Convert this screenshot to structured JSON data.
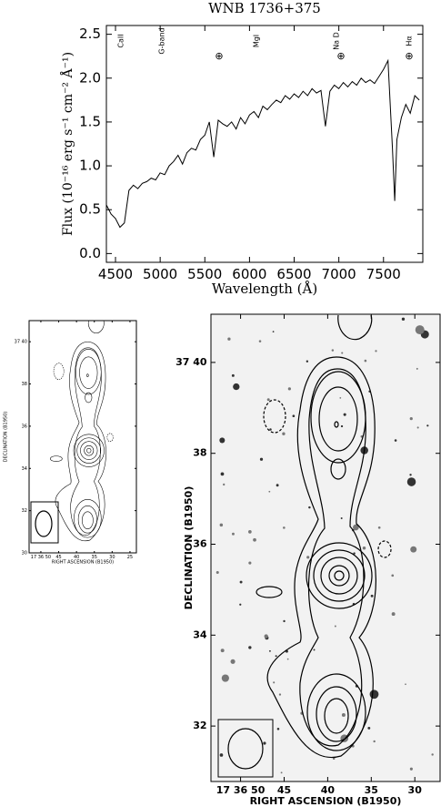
{
  "chart_data": [
    {
      "type": "line",
      "title": "WNB 1736+375",
      "x_label": "Wavelength (Å)",
      "y_label": "Flux (10⁻¹⁶ erg s⁻¹ cm⁻² Å⁻¹)",
      "color": "#000000",
      "x": [
        4400,
        4450,
        4500,
        4550,
        4600,
        4650,
        4700,
        4750,
        4800,
        4850,
        4900,
        4950,
        5000,
        5050,
        5100,
        5150,
        5200,
        5250,
        5300,
        5350,
        5400,
        5450,
        5500,
        5550,
        5600,
        5650,
        5700,
        5750,
        5800,
        5850,
        5900,
        5950,
        6000,
        6050,
        6100,
        6150,
        6200,
        6250,
        6300,
        6350,
        6400,
        6450,
        6500,
        6550,
        6600,
        6650,
        6700,
        6750,
        6800,
        6850,
        6900,
        6950,
        7000,
        7050,
        7100,
        7150,
        7200,
        7250,
        7300,
        7350,
        7400,
        7450,
        7500,
        7550,
        7600,
        7625,
        7650,
        7700,
        7750,
        7800,
        7850,
        7900
      ],
      "values": [
        0.55,
        0.45,
        0.4,
        0.3,
        0.35,
        0.72,
        0.78,
        0.74,
        0.8,
        0.82,
        0.86,
        0.84,
        0.92,
        0.9,
        1.0,
        1.05,
        1.12,
        1.02,
        1.15,
        1.2,
        1.18,
        1.3,
        1.35,
        1.5,
        1.1,
        1.52,
        1.48,
        1.45,
        1.5,
        1.42,
        1.55,
        1.48,
        1.58,
        1.62,
        1.55,
        1.68,
        1.64,
        1.7,
        1.75,
        1.72,
        1.8,
        1.76,
        1.82,
        1.78,
        1.85,
        1.8,
        1.88,
        1.83,
        1.86,
        1.45,
        1.85,
        1.92,
        1.88,
        1.95,
        1.9,
        1.96,
        1.92,
        2.0,
        1.95,
        1.98,
        1.94,
        2.02,
        2.1,
        2.2,
        1.2,
        0.6,
        1.3,
        1.55,
        1.7,
        1.6,
        1.8,
        1.75
      ],
      "xlim": [
        4398,
        7940
      ],
      "ylim": [
        -0.1,
        2.6
      ],
      "xticks": [
        4500,
        5000,
        5500,
        6000,
        6500,
        7000,
        7500
      ],
      "yticks": [
        {
          "value": 0,
          "label": "0.0"
        },
        0.5,
        {
          "value": 1,
          "label": "1.0"
        },
        1.5,
        {
          "value": 2,
          "label": "2.0"
        },
        2.5
      ],
      "annotations": [
        "CaII",
        "G-band",
        "MgI",
        "Na D",
        "Hα"
      ],
      "telluric_markers": [
        "⊕",
        "⊕",
        "⊕"
      ]
    },
    {
      "type": "contour",
      "x_label": "RIGHT ASCENSION (B1950)",
      "y_label": "DECLINATION (B1950)",
      "xlim": [
        53.3,
        23.2
      ],
      "ylim": [
        30,
        41
      ],
      "xticks": [
        {
          "value": 50,
          "label": "17 36 50"
        },
        45,
        40,
        35,
        30,
        25
      ],
      "yticks": [
        {
          "value": 40,
          "label": "37 40"
        },
        38,
        36,
        34,
        32,
        30
      ]
    },
    {
      "type": "contour",
      "x_label": "RIGHT ASCENSION (B1950)",
      "y_label": "DECLINATION (B1950)",
      "xlim": [
        53.4,
        27.1
      ],
      "ylim": [
        30.78,
        41.06
      ],
      "xticks": [
        {
          "value": 50,
          "label": "17 36 50"
        },
        45,
        40,
        35,
        30
      ],
      "yticks": [
        {
          "value": 40,
          "label": "37 40"
        },
        38,
        36,
        34,
        32
      ]
    }
  ]
}
